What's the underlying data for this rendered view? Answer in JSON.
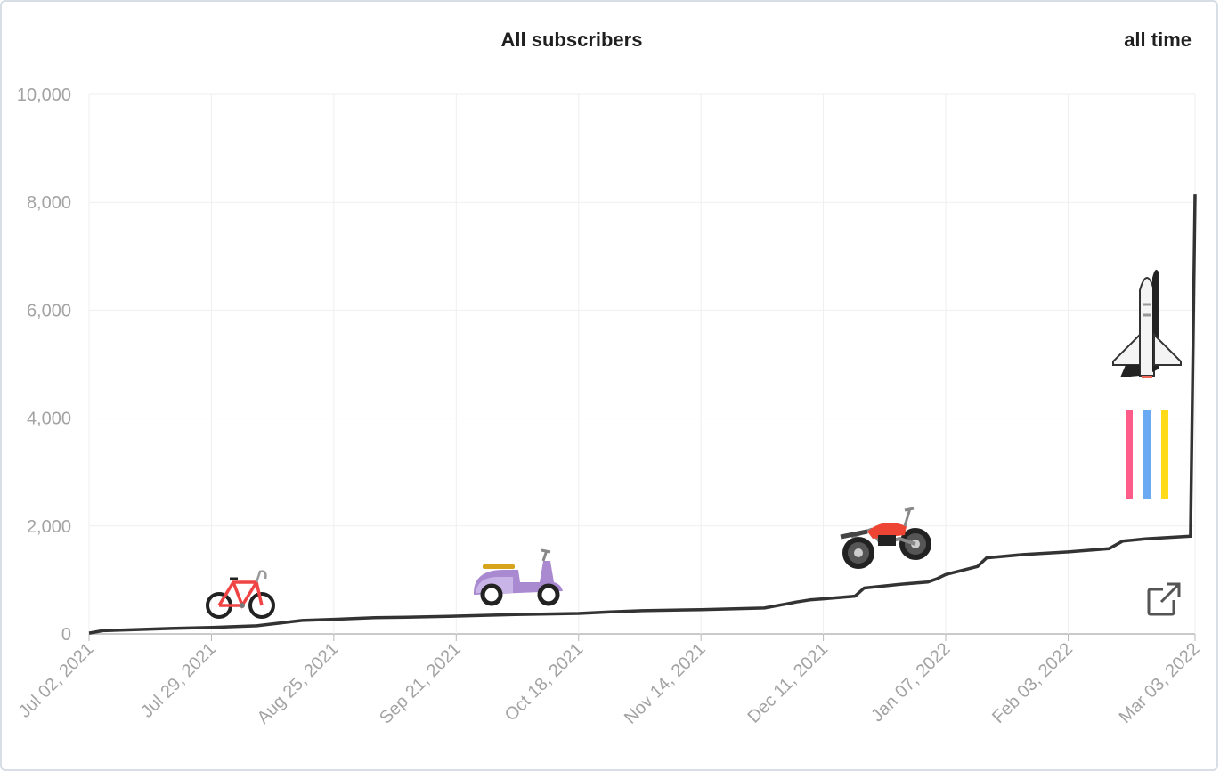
{
  "header": {
    "title": "All subscribers",
    "range_label": "all time"
  },
  "icons": {
    "expand": "external-link-icon",
    "milestones": [
      "bicycle-icon",
      "scooter-icon",
      "motorcycle-icon",
      "space-shuttle-icon"
    ]
  },
  "colors": {
    "line": "#333333",
    "grid": "#efefef",
    "axis": "#b8b8b8",
    "tick_text": "#a3a3a3",
    "exhaust": [
      "#ff5c8a",
      "#6aaaf2",
      "#ffdb1a"
    ]
  },
  "chart_data": {
    "type": "line",
    "title": "All subscribers",
    "xlabel": "",
    "ylabel": "",
    "ylim": [
      0,
      10000
    ],
    "yticks": [
      "0",
      "2,000",
      "4,000",
      "6,000",
      "8,000",
      "10,000"
    ],
    "ytick_values": [
      0,
      2000,
      4000,
      6000,
      8000,
      10000
    ],
    "xlim": [
      "2021-07-02",
      "2022-03-03"
    ],
    "xticks": [
      "Jul 02, 2021",
      "Jul 29, 2021",
      "Aug 25, 2021",
      "Sep 21, 2021",
      "Oct 18, 2021",
      "Nov 14, 2021",
      "Dec 11, 2021",
      "Jan 07, 2022",
      "Feb 03, 2022",
      "Mar 03, 2022"
    ],
    "xtick_dates": [
      "2021-07-02",
      "2021-07-29",
      "2021-08-25",
      "2021-09-21",
      "2021-10-18",
      "2021-11-14",
      "2021-12-11",
      "2022-01-07",
      "2022-02-03",
      "2022-03-03"
    ],
    "grid": true,
    "series": [
      {
        "x": [
          "2021-07-02",
          "2021-07-05",
          "2021-07-12",
          "2021-07-20",
          "2021-07-29",
          "2021-08-08",
          "2021-08-13",
          "2021-08-18",
          "2021-08-25",
          "2021-09-03",
          "2021-09-10",
          "2021-09-21",
          "2021-10-04",
          "2021-10-18",
          "2021-10-25",
          "2021-11-01",
          "2021-11-14",
          "2021-11-28",
          "2021-12-05",
          "2021-12-08",
          "2021-12-11",
          "2021-12-18",
          "2021-12-20",
          "2021-12-28",
          "2022-01-03",
          "2022-01-05",
          "2022-01-07",
          "2022-01-14",
          "2022-01-16",
          "2022-01-24",
          "2022-02-03",
          "2022-02-12",
          "2022-02-15",
          "2022-02-20",
          "2022-03-02",
          "2022-03-03"
        ],
        "y": [
          15,
          60,
          80,
          100,
          120,
          150,
          200,
          250,
          270,
          300,
          310,
          330,
          360,
          380,
          410,
          430,
          450,
          480,
          590,
          630,
          650,
          700,
          850,
          920,
          960,
          1020,
          1100,
          1250,
          1410,
          1470,
          1520,
          1580,
          1720,
          1760,
          1810,
          8150
        ]
      }
    ]
  }
}
